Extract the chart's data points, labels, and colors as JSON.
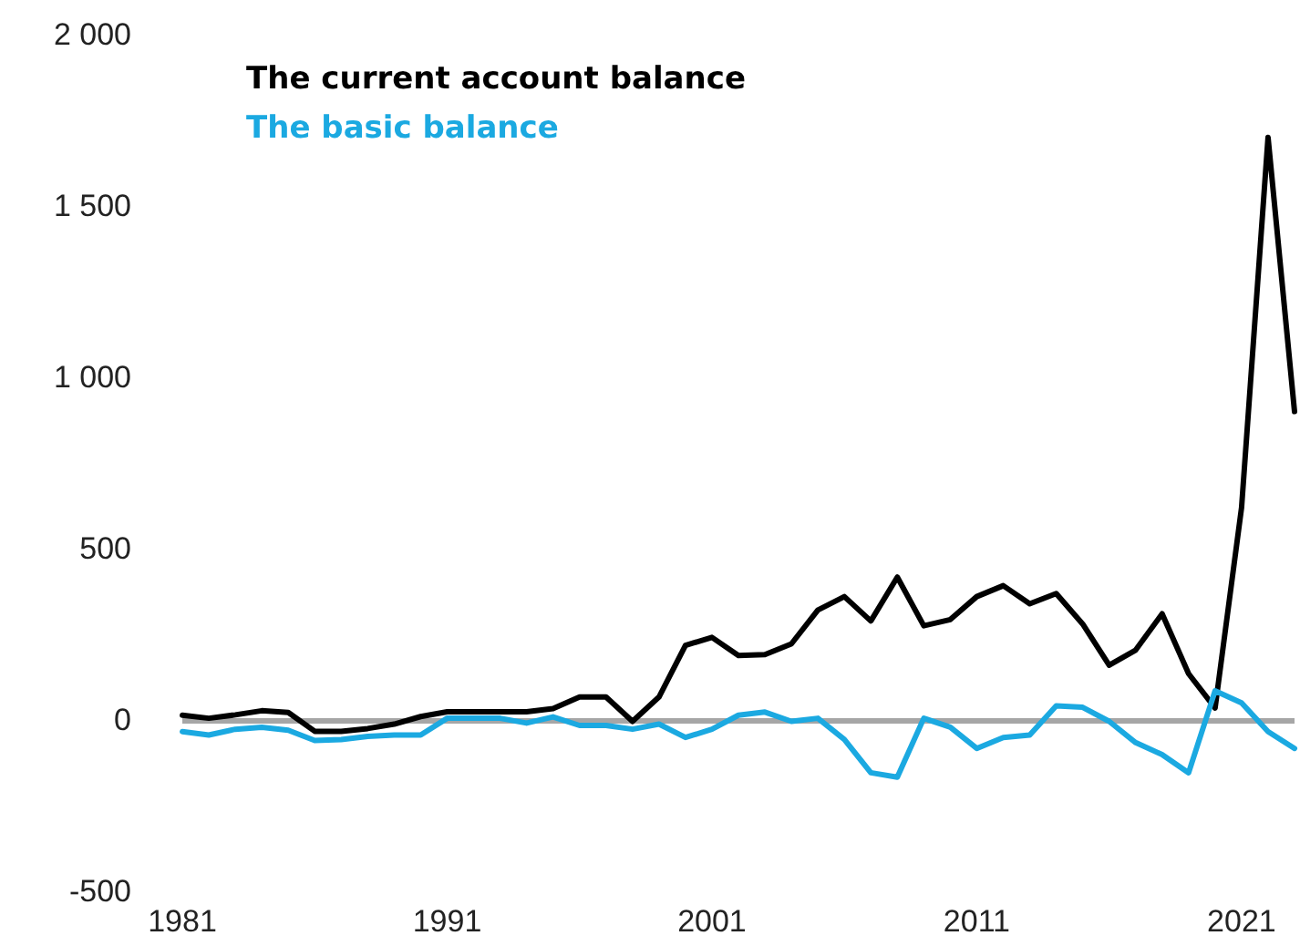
{
  "chart_data": {
    "type": "line",
    "x": [
      1981,
      1982,
      1983,
      1984,
      1985,
      1986,
      1987,
      1988,
      1989,
      1990,
      1991,
      1992,
      1993,
      1994,
      1995,
      1996,
      1997,
      1998,
      1999,
      2000,
      2001,
      2002,
      2003,
      2004,
      2005,
      2006,
      2007,
      2008,
      2009,
      2010,
      2011,
      2012,
      2013,
      2014,
      2015,
      2016,
      2017,
      2018,
      2019,
      2020,
      2021,
      2022,
      2023
    ],
    "series": [
      {
        "name": "The current account balance",
        "color": "#000000",
        "values": [
          14,
          5,
          15,
          27,
          22,
          -33,
          -33,
          -25,
          -12,
          10,
          24,
          24,
          24,
          24,
          33,
          67,
          67,
          -4,
          67,
          218,
          241,
          188,
          191,
          222,
          321,
          360,
          289,
          417,
          275,
          293,
          360,
          392,
          339,
          369,
          280,
          160,
          204,
          310,
          135,
          35,
          620,
          1700,
          900
        ]
      },
      {
        "name": "The basic balance",
        "color": "#1ba9e1",
        "values": [
          -34,
          -44,
          -27,
          -21,
          -30,
          -60,
          -57,
          -48,
          -44,
          -44,
          5,
          5,
          5,
          -9,
          9,
          -16,
          -16,
          -27,
          -12,
          -51,
          -27,
          14,
          23,
          -4,
          5,
          -57,
          -154,
          -167,
          5,
          -21,
          -83,
          -51,
          -44,
          41,
          37,
          -4,
          -66,
          -101,
          -154,
          85,
          50,
          -34,
          -83
        ]
      }
    ],
    "xlim": [
      1981,
      2023
    ],
    "xticks": [
      1981,
      1991,
      2001,
      2011,
      2021
    ],
    "ylim": [
      -500,
      2000
    ],
    "yticks": [
      -500,
      0,
      500,
      {
        "value": 1000,
        "label": "1 000"
      },
      {
        "value": 1500,
        "label": "1 500"
      },
      {
        "value": 2000,
        "label": "2 000"
      }
    ],
    "ref_lines": [
      {
        "axis": "y",
        "value": 0,
        "color": "#a6a6a6"
      }
    ],
    "legend": "top left",
    "grid": false,
    "marker": "none",
    "line_style": "solid"
  }
}
